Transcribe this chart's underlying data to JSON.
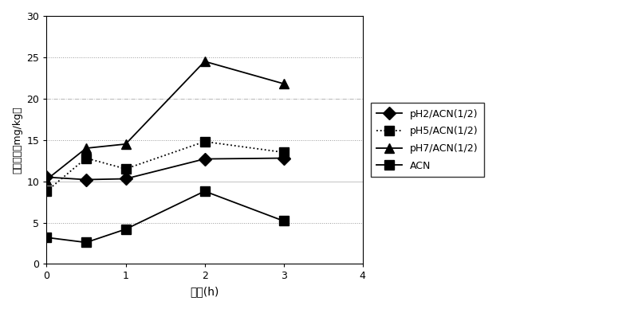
{
  "x": [
    0,
    0.5,
    1,
    2,
    3
  ],
  "series": {
    "pH2/ACN(1/2)": [
      10.5,
      10.2,
      10.3,
      12.7,
      12.8
    ],
    "pH5/ACN(1/2)": [
      8.8,
      12.8,
      11.5,
      14.8,
      13.5
    ],
    "pH7/ACN(1/2)": [
      10.2,
      14.0,
      14.5,
      24.5,
      21.8
    ],
    "ACN": [
      3.2,
      2.6,
      4.2,
      8.8,
      5.2
    ]
  },
  "markers": {
    "pH2/ACN(1/2)": "D",
    "pH5/ACN(1/2)": "s",
    "pH7/ACN(1/2)": "^",
    "ACN": "s"
  },
  "line_styles": {
    "pH2/ACN(1/2)": "-",
    "pH5/ACN(1/2)": ":",
    "pH7/ACN(1/2)": "-",
    "ACN": "-"
  },
  "legend_labels": [
    "pH2/ACN(1/2)",
    "pH5/ACN(1/2)",
    "pH7/ACN(1/2)",
    "ACN"
  ],
  "xlabel": "时间(h)",
  "ylabel": "甲醉含量（mg/kg）",
  "xlim": [
    0,
    4
  ],
  "ylim": [
    0,
    30
  ],
  "yticks": [
    0,
    5,
    10,
    15,
    20,
    25,
    30
  ],
  "xticks": [
    0,
    1,
    2,
    3,
    4
  ],
  "background_color": "#ffffff",
  "markersize": 8,
  "linewidth": 1.3,
  "grid_yticks_styles": {
    "5": ":",
    "10": "-",
    "15": ":",
    "20": "-.",
    "25": ":",
    "30": "-"
  }
}
